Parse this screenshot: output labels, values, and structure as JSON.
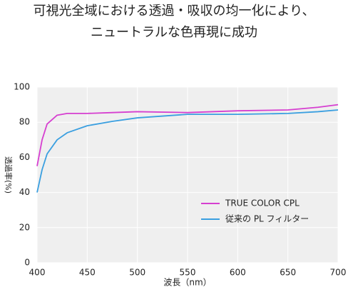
{
  "chart_data": {
    "type": "line",
    "title": [
      "可視光全域における透過・吸収の均一化により、",
      "ニュートラルな色再現に成功"
    ],
    "xlabel": "波長（nm）",
    "ylabel": "透過率(%)",
    "x": [
      400,
      405,
      410,
      420,
      430,
      450,
      475,
      500,
      550,
      600,
      650,
      680,
      700
    ],
    "series": [
      {
        "name": "TRUE COLOR CPL",
        "color": "#d63fd0",
        "values": [
          55,
          70,
          79,
          84,
          85,
          85,
          85.5,
          86,
          85.5,
          86.5,
          87,
          88.5,
          90
        ]
      },
      {
        "name": "従来の PL フィルター",
        "color": "#3a9fe0",
        "values": [
          40,
          53,
          62,
          70,
          74,
          78,
          80.5,
          82.5,
          84.5,
          84.5,
          85,
          86,
          87
        ]
      }
    ],
    "xlim": [
      400,
      700
    ],
    "xticks": [
      400,
      450,
      500,
      550,
      600,
      650,
      700
    ],
    "ylim": [
      0,
      100
    ],
    "yticks": [
      0,
      20,
      40,
      60,
      80,
      100
    ],
    "grid": true,
    "legend": "lower right"
  }
}
